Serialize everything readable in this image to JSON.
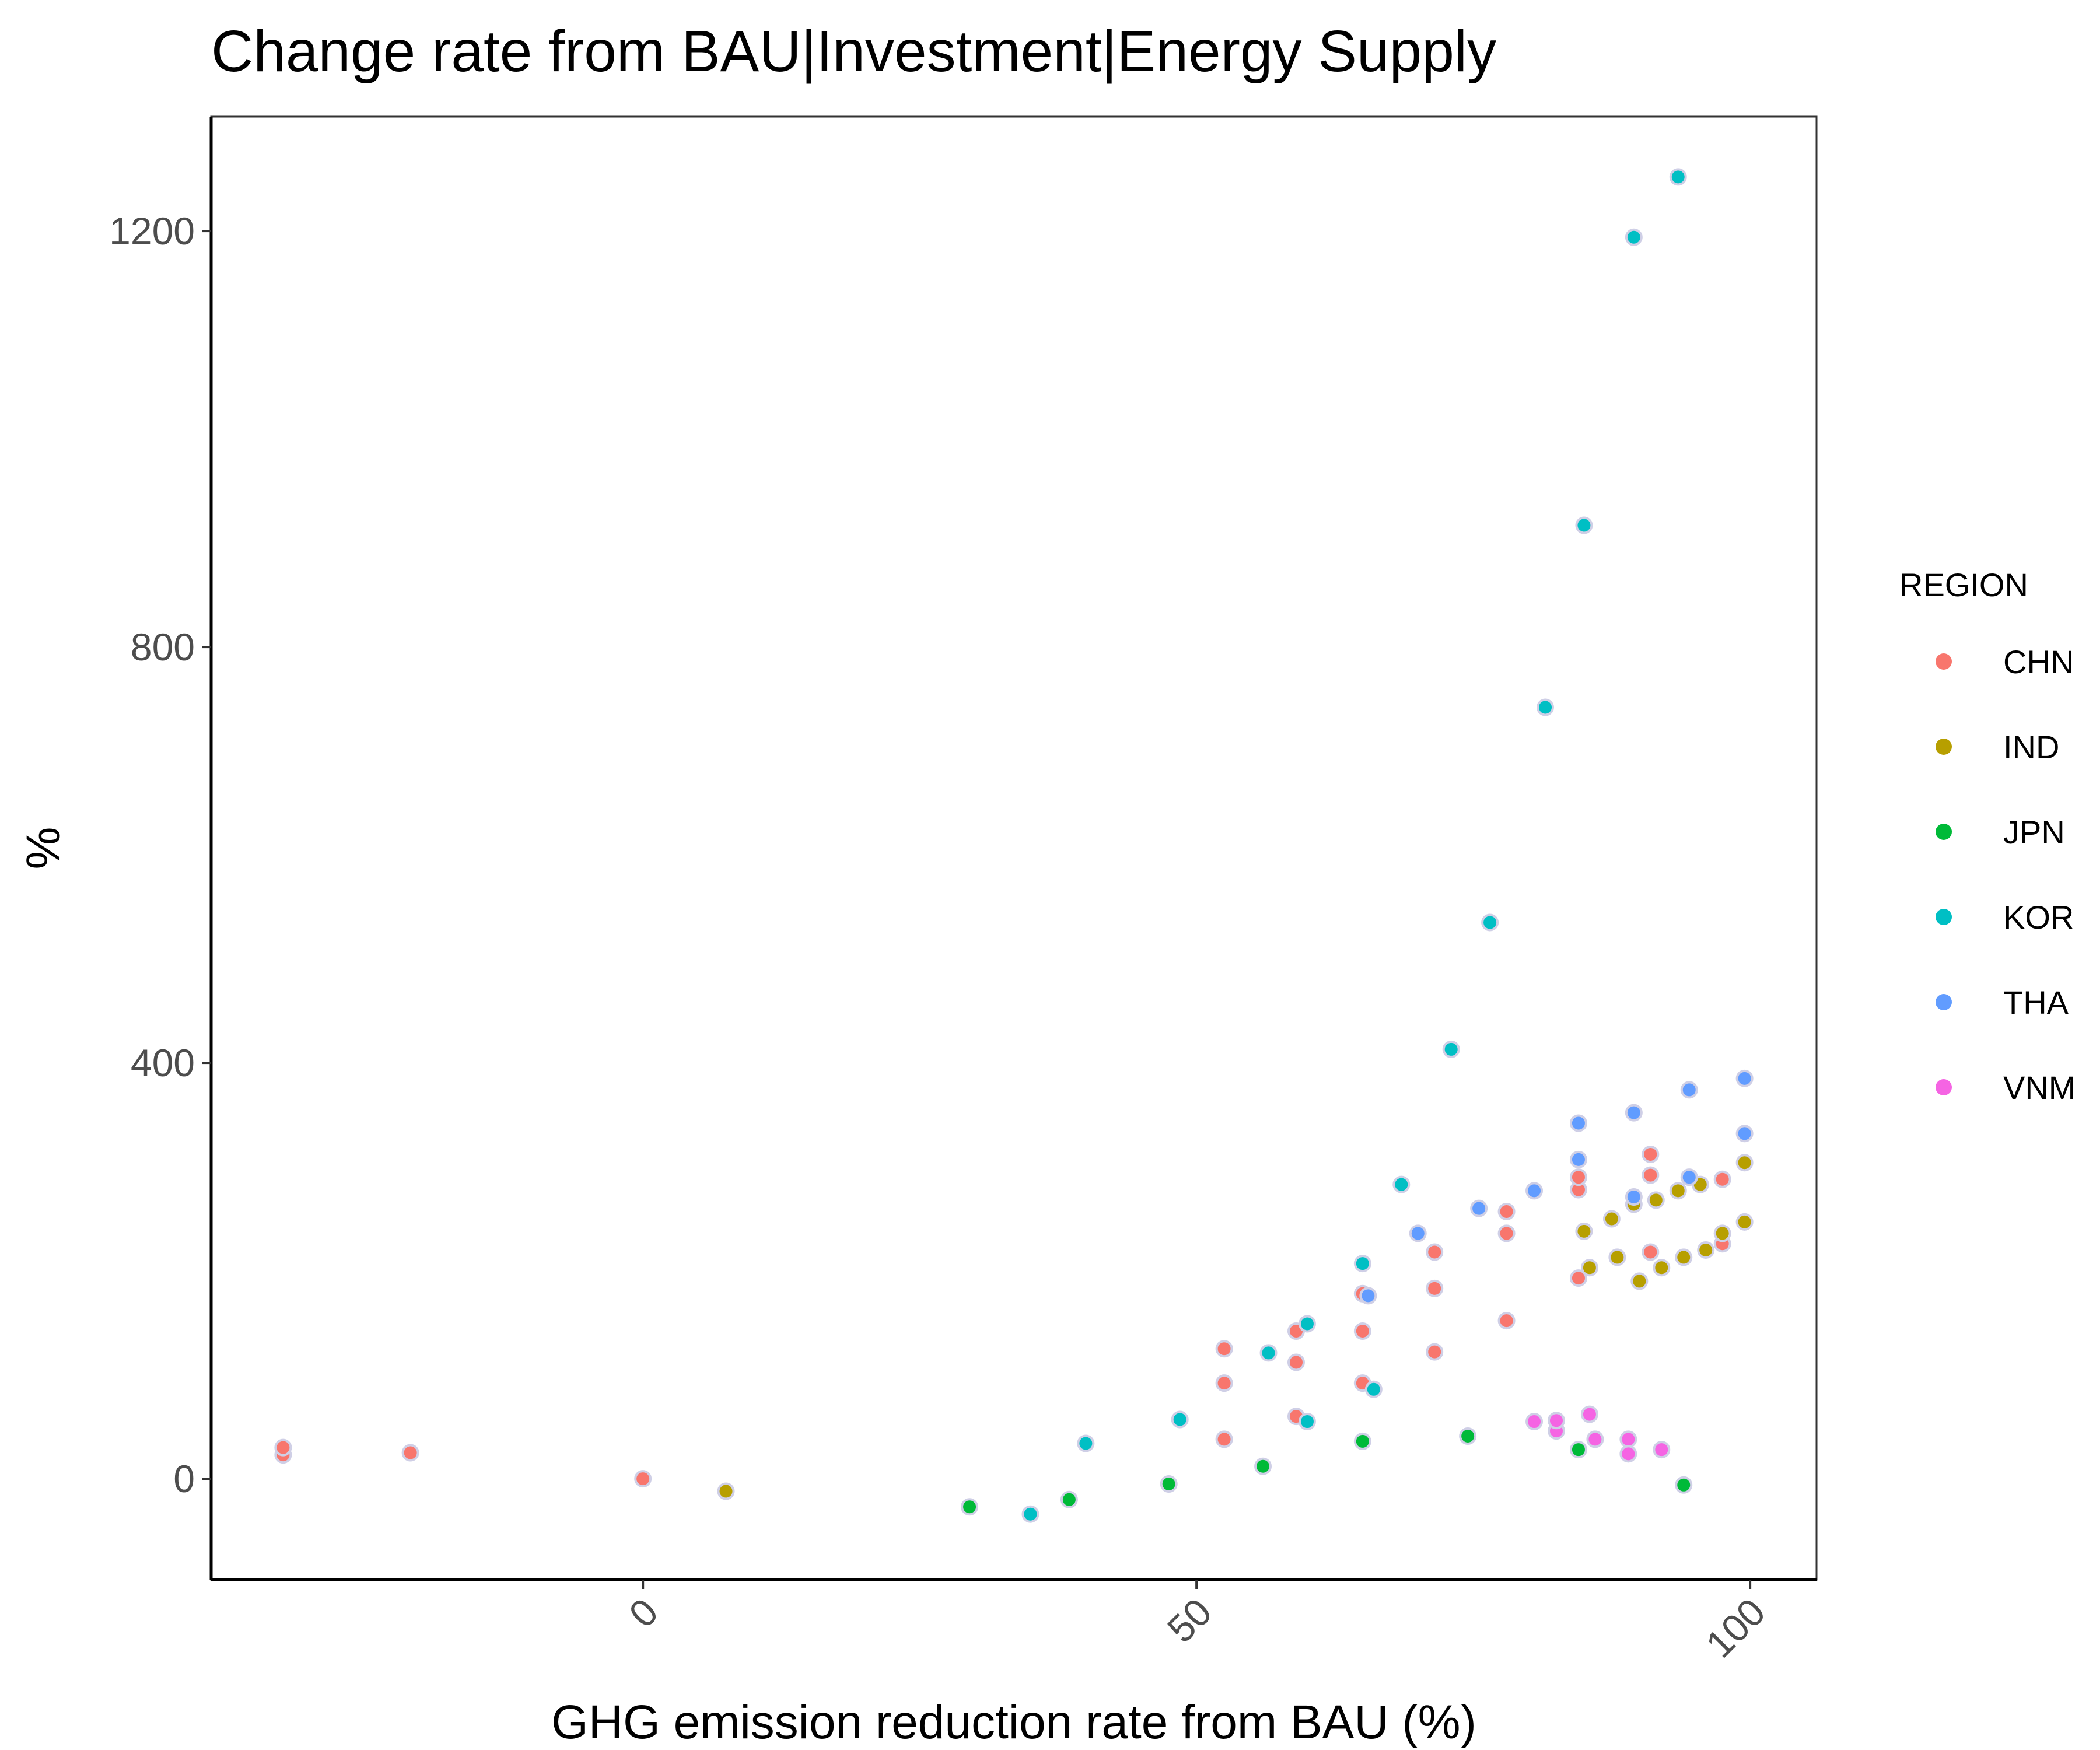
{
  "chart_data": {
    "type": "scatter",
    "title": "Change rate from BAU|Investment|Energy Supply",
    "xlabel": "GHG emission reduction rate from BAU (%)",
    "ylabel": "%",
    "xlim": [
      -39,
      106
    ],
    "ylim": [
      -97,
      1310
    ],
    "x_ticks": [
      0,
      50,
      100
    ],
    "y_ticks": [
      0,
      400,
      800,
      1200
    ],
    "x_tick_labels": [
      "0",
      "50",
      "100"
    ],
    "y_tick_labels": [
      "0",
      "400",
      "800",
      "1200"
    ],
    "grid": false,
    "legend": {
      "title": "REGION",
      "position": "right"
    },
    "series": [
      {
        "name": "CHN",
        "color": "#F8766D",
        "points": [
          [
            -32.5,
            23
          ],
          [
            -32.5,
            30
          ],
          [
            -21,
            25
          ],
          [
            0,
            0
          ],
          [
            52.5,
            38
          ],
          [
            52.5,
            92
          ],
          [
            52.5,
            125
          ],
          [
            59,
            60
          ],
          [
            59,
            112
          ],
          [
            59,
            142
          ],
          [
            65,
            92
          ],
          [
            65,
            142
          ],
          [
            65,
            178
          ],
          [
            71.5,
            122
          ],
          [
            71.5,
            183
          ],
          [
            71.5,
            218
          ],
          [
            78,
            152
          ],
          [
            78,
            236
          ],
          [
            78,
            257
          ],
          [
            84.5,
            193
          ],
          [
            84.5,
            278
          ],
          [
            84.5,
            290
          ],
          [
            91,
            218
          ],
          [
            91,
            292
          ],
          [
            91,
            312
          ],
          [
            97.5,
            226
          ],
          [
            97.5,
            288
          ]
        ]
      },
      {
        "name": "IND",
        "color": "#B79F00",
        "points": [
          [
            7.5,
            -12
          ],
          [
            85,
            238
          ],
          [
            85.5,
            203
          ],
          [
            87.5,
            250
          ],
          [
            88,
            213
          ],
          [
            89.5,
            264
          ],
          [
            90,
            190
          ],
          [
            91.5,
            268
          ],
          [
            92,
            203
          ],
          [
            93.5,
            277
          ],
          [
            94,
            213
          ],
          [
            95.5,
            283
          ],
          [
            96,
            220
          ],
          [
            97.5,
            236
          ],
          [
            99.5,
            304
          ],
          [
            99.5,
            247
          ]
        ]
      },
      {
        "name": "JPN",
        "color": "#00BA38",
        "points": [
          [
            29.5,
            -27
          ],
          [
            38.5,
            -20
          ],
          [
            47.5,
            -5
          ],
          [
            56,
            12
          ],
          [
            65,
            36
          ],
          [
            74.5,
            41
          ],
          [
            84.5,
            28
          ],
          [
            94,
            -6
          ]
        ]
      },
      {
        "name": "KOR",
        "color": "#00BFC4",
        "points": [
          [
            35,
            -34
          ],
          [
            40,
            34
          ],
          [
            48.5,
            57
          ],
          [
            56.5,
            121
          ],
          [
            60,
            55
          ],
          [
            60,
            149
          ],
          [
            65,
            207
          ],
          [
            66,
            86
          ],
          [
            68.5,
            283
          ],
          [
            73,
            413
          ],
          [
            76.5,
            535
          ],
          [
            81.5,
            742
          ],
          [
            85,
            917
          ],
          [
            89.5,
            1194
          ],
          [
            93.5,
            1252
          ]
        ]
      },
      {
        "name": "THA",
        "color": "#619CFF",
        "points": [
          [
            65.5,
            176
          ],
          [
            70,
            236
          ],
          [
            75.5,
            260
          ],
          [
            80.5,
            277
          ],
          [
            84.5,
            342
          ],
          [
            84.5,
            307
          ],
          [
            89.5,
            352
          ],
          [
            89.5,
            271
          ],
          [
            94.5,
            374
          ],
          [
            94.5,
            290
          ],
          [
            99.5,
            385
          ],
          [
            99.5,
            332
          ]
        ]
      },
      {
        "name": "VNM",
        "color": "#F564E3",
        "points": [
          [
            80.5,
            55
          ],
          [
            82.5,
            46
          ],
          [
            82.5,
            56
          ],
          [
            85.5,
            62
          ],
          [
            86,
            38
          ],
          [
            89,
            38
          ],
          [
            89,
            24
          ],
          [
            92,
            28
          ]
        ]
      }
    ]
  }
}
